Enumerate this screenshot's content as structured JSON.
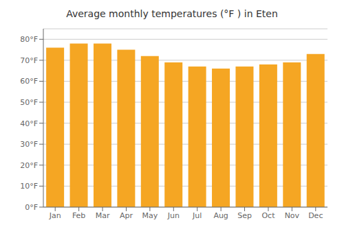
{
  "chart_data": {
    "type": "bar",
    "title": "Average monthly temperatures (°F ) in Eten",
    "categories": [
      "Jan",
      "Feb",
      "Mar",
      "Apr",
      "May",
      "Jun",
      "Jul",
      "Aug",
      "Sep",
      "Oct",
      "Nov",
      "Dec"
    ],
    "values": [
      76,
      78,
      78,
      75,
      72,
      69,
      67,
      66,
      67,
      68,
      69,
      73
    ],
    "color": "#F5A623",
    "ylim": [
      0,
      85
    ],
    "yticks": [
      {
        "value": 0,
        "label": "0°F"
      },
      {
        "value": 10,
        "label": "10°F"
      },
      {
        "value": 20,
        "label": "20°F"
      },
      {
        "value": 30,
        "label": "30°F"
      },
      {
        "value": 40,
        "label": "40°F"
      },
      {
        "value": 50,
        "label": "50°F"
      },
      {
        "value": 60,
        "label": "60°F"
      },
      {
        "value": 70,
        "label": "70°F"
      },
      {
        "value": 80,
        "label": "80°F"
      }
    ],
    "grid": true
  }
}
